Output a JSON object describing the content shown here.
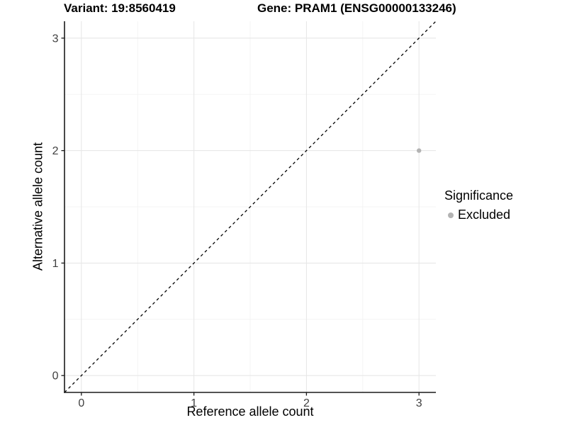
{
  "chart_data": {
    "type": "scatter",
    "titles": {
      "left": "Variant: 19:8560419",
      "right": "Gene: PRAM1 (ENSG00000133246)"
    },
    "xlabel": "Reference allele count",
    "ylabel": "Alternative allele count",
    "xlim": [
      -0.15,
      3.15
    ],
    "ylim": [
      -0.15,
      3.15
    ],
    "x_ticks": [
      0,
      1,
      2,
      3
    ],
    "y_ticks": [
      0,
      1,
      2,
      3
    ],
    "x_minor_ticks": [
      0.5,
      1.5,
      2.5
    ],
    "y_minor_ticks": [
      0.5,
      1.5,
      2.5
    ],
    "grid": true,
    "identity_line": {
      "style": "dashed",
      "from": [
        -0.15,
        -0.15
      ],
      "to": [
        3.15,
        3.15
      ],
      "color": "#000000"
    },
    "points": [
      {
        "x": 3,
        "y": 2,
        "series": "Excluded",
        "color": "#b3b3b3"
      }
    ],
    "legend": {
      "title": "Significance",
      "position": "right",
      "items": [
        {
          "label": "Excluded",
          "color": "#b3b3b3"
        }
      ]
    },
    "colors": {
      "point": "#b3b3b3",
      "grid_major": "#e7e7e7",
      "grid_minor": "#f2f2f2",
      "axis_line": "#1a1a1a",
      "tick_label": "#404040",
      "panel_bg": "#ffffff"
    }
  }
}
